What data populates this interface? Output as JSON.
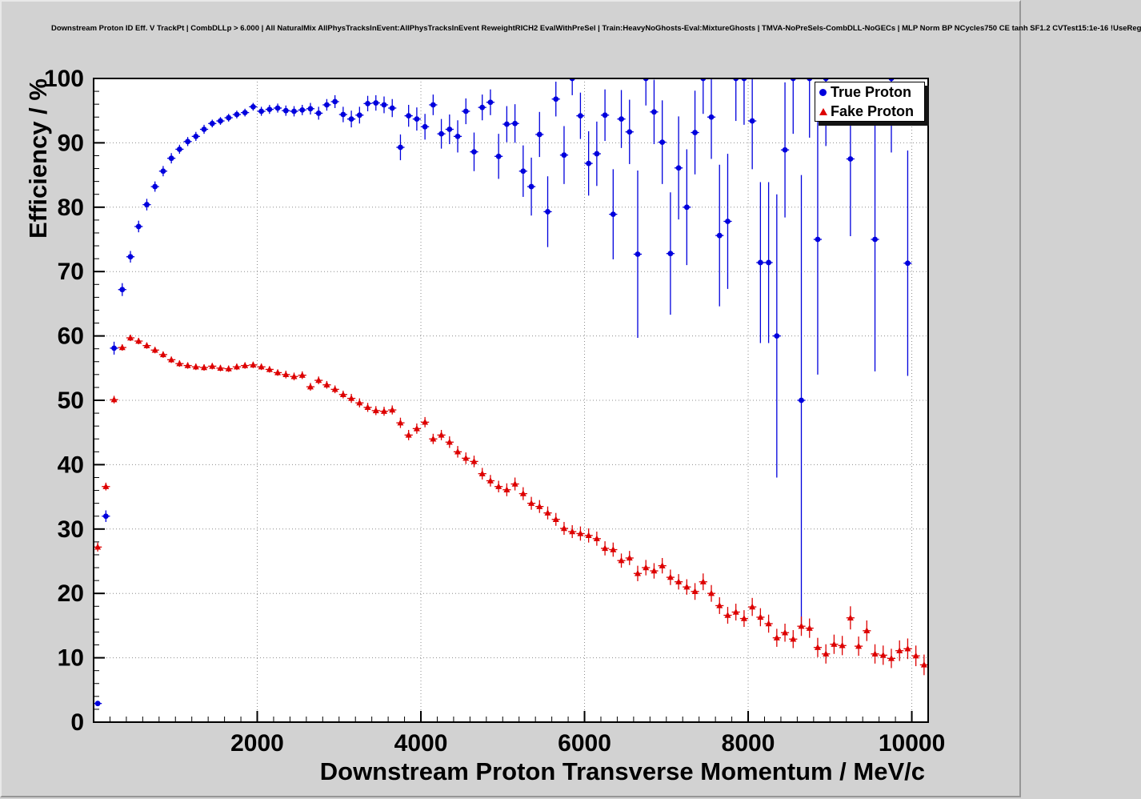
{
  "chart_data": {
    "type": "scatter",
    "title": "Downstream Proton ID Eff. V TrackPt | CombDLLp > 6.000 | All NaturalMix AllPhysTracksInEvent:AllPhysTracksInEvent ReweightRICH2 EvalWithPreSel | Train:HeavyNoGhosts-Eval:MixtureGhosts | TMVA-NoPreSels-CombDLL-NoGECs | MLP Norm BP NCycles750 CE tanh SF1.2 CVTest15:1e-16 !UseReg",
    "xlabel": "Downstream Proton Transverse Momentum / MeV/c",
    "ylabel": "Efficiency / %",
    "xlim": [
      0,
      10200
    ],
    "ylim": [
      0,
      100
    ],
    "x_ticks": [
      2000,
      4000,
      6000,
      8000,
      10000
    ],
    "y_ticks": [
      0,
      10,
      20,
      30,
      40,
      50,
      60,
      70,
      80,
      90,
      100
    ],
    "x_minor": 200,
    "y_minor": 2,
    "grid": true,
    "grid_color": "#8c8c8c",
    "frame_color": "#000000",
    "background_color": "#d2d2d2",
    "plot_background": "#ffffff",
    "legend_position": "top-right",
    "series": [
      {
        "name": "True Proton",
        "color": "#0000dd",
        "marker": "circle",
        "x_err": 50,
        "points": [
          [
            50,
            2.9,
            0.3
          ],
          [
            150,
            32.0,
            0.9
          ],
          [
            250,
            58.1,
            1.0
          ],
          [
            350,
            67.2,
            1.0
          ],
          [
            450,
            72.3,
            0.9
          ],
          [
            550,
            77.0,
            0.9
          ],
          [
            650,
            80.4,
            0.9
          ],
          [
            750,
            83.2,
            0.8
          ],
          [
            850,
            85.6,
            0.8
          ],
          [
            950,
            87.6,
            0.8
          ],
          [
            1050,
            89.0,
            0.7
          ],
          [
            1150,
            90.2,
            0.7
          ],
          [
            1250,
            91.0,
            0.7
          ],
          [
            1350,
            92.1,
            0.7
          ],
          [
            1450,
            93.0,
            0.6
          ],
          [
            1550,
            93.4,
            0.6
          ],
          [
            1650,
            93.9,
            0.6
          ],
          [
            1750,
            94.4,
            0.6
          ],
          [
            1850,
            94.7,
            0.6
          ],
          [
            1950,
            95.6,
            0.6
          ],
          [
            2050,
            94.9,
            0.7
          ],
          [
            2150,
            95.2,
            0.7
          ],
          [
            2250,
            95.4,
            0.7
          ],
          [
            2350,
            95.0,
            0.8
          ],
          [
            2450,
            94.9,
            0.8
          ],
          [
            2550,
            95.1,
            0.8
          ],
          [
            2650,
            95.3,
            0.9
          ],
          [
            2750,
            94.6,
            1.0
          ],
          [
            2850,
            95.9,
            0.9
          ],
          [
            2950,
            96.4,
            1.0
          ],
          [
            3050,
            94.4,
            1.2
          ],
          [
            3150,
            93.7,
            1.3
          ],
          [
            3250,
            94.3,
            1.3
          ],
          [
            3350,
            96.1,
            1.2
          ],
          [
            3450,
            96.2,
            1.2
          ],
          [
            3550,
            95.9,
            1.3
          ],
          [
            3650,
            95.4,
            1.4
          ],
          [
            3750,
            89.3,
            2.0
          ],
          [
            3850,
            94.2,
            1.7
          ],
          [
            3950,
            93.7,
            1.8
          ],
          [
            4050,
            92.5,
            2.0
          ],
          [
            4150,
            95.9,
            1.6
          ],
          [
            4250,
            91.4,
            2.3
          ],
          [
            4350,
            92.1,
            2.3
          ],
          [
            4450,
            91.0,
            2.5
          ],
          [
            4550,
            94.9,
            2.0
          ],
          [
            4650,
            88.6,
            3.0
          ],
          [
            4750,
            95.5,
            2.0
          ],
          [
            4850,
            96.3,
            2.0
          ],
          [
            4950,
            87.9,
            3.5
          ],
          [
            5050,
            92.9,
            2.8
          ],
          [
            5150,
            93.0,
            3.0
          ],
          [
            5250,
            85.6,
            4.0
          ],
          [
            5350,
            83.2,
            4.5
          ],
          [
            5450,
            91.3,
            3.5
          ],
          [
            5550,
            79.3,
            5.5
          ],
          [
            5650,
            96.8,
            2.7
          ],
          [
            5750,
            88.1,
            4.5
          ],
          [
            5850,
            100.0,
            2.6
          ],
          [
            5950,
            94.2,
            3.6
          ],
          [
            6050,
            86.8,
            5.0
          ],
          [
            6150,
            88.3,
            5.0
          ],
          [
            6250,
            94.3,
            4.0
          ],
          [
            6350,
            78.9,
            7.0
          ],
          [
            6450,
            93.7,
            4.5
          ],
          [
            6550,
            91.7,
            5.0
          ],
          [
            6650,
            72.7,
            13.0
          ],
          [
            6750,
            100.0,
            4.2
          ],
          [
            6850,
            94.8,
            5.0
          ],
          [
            6950,
            90.1,
            6.5
          ],
          [
            7050,
            72.8,
            9.5
          ],
          [
            7150,
            86.1,
            8.0
          ],
          [
            7250,
            80.0,
            9.0
          ],
          [
            7350,
            91.6,
            6.5
          ],
          [
            7450,
            100.0,
            5.5
          ],
          [
            7550,
            94.0,
            6.5
          ],
          [
            7650,
            75.6,
            11.0
          ],
          [
            7750,
            77.8,
            10.5
          ],
          [
            7850,
            100.0,
            6.6
          ],
          [
            7950,
            100.0,
            7.2
          ],
          [
            8050,
            93.4,
            7.5
          ],
          [
            8150,
            71.4,
            12.5
          ],
          [
            8250,
            71.4,
            12.5
          ],
          [
            8350,
            60.0,
            22.0
          ],
          [
            8450,
            88.9,
            10.5
          ],
          [
            8550,
            100.0,
            8.6
          ],
          [
            8650,
            50.0,
            35.0
          ],
          [
            8750,
            100.0,
            9.2
          ],
          [
            8850,
            75.0,
            21.0
          ],
          [
            8950,
            100.0,
            10.5
          ],
          [
            9250,
            87.5,
            12.0
          ],
          [
            9550,
            75.0,
            20.5
          ],
          [
            9750,
            100.0,
            11.5
          ],
          [
            9950,
            71.3,
            17.5
          ]
        ]
      },
      {
        "name": "Fake Proton",
        "color": "#dd0000",
        "marker": "triangle",
        "x_err": 50,
        "points": [
          [
            50,
            27.2,
            0.7
          ],
          [
            150,
            36.6,
            0.6
          ],
          [
            250,
            50.1,
            0.6
          ],
          [
            350,
            58.2,
            0.5
          ],
          [
            450,
            59.7,
            0.5
          ],
          [
            550,
            59.2,
            0.5
          ],
          [
            650,
            58.5,
            0.5
          ],
          [
            750,
            57.8,
            0.5
          ],
          [
            850,
            57.1,
            0.5
          ],
          [
            950,
            56.3,
            0.5
          ],
          [
            1050,
            55.7,
            0.5
          ],
          [
            1150,
            55.4,
            0.5
          ],
          [
            1250,
            55.2,
            0.5
          ],
          [
            1350,
            55.1,
            0.5
          ],
          [
            1450,
            55.3,
            0.5
          ],
          [
            1550,
            55.0,
            0.5
          ],
          [
            1650,
            54.9,
            0.5
          ],
          [
            1750,
            55.2,
            0.5
          ],
          [
            1850,
            55.4,
            0.5
          ],
          [
            1950,
            55.5,
            0.5
          ],
          [
            2050,
            55.2,
            0.5
          ],
          [
            2150,
            54.8,
            0.5
          ],
          [
            2250,
            54.3,
            0.5
          ],
          [
            2350,
            54.0,
            0.6
          ],
          [
            2450,
            53.7,
            0.6
          ],
          [
            2550,
            53.9,
            0.6
          ],
          [
            2650,
            52.1,
            0.6
          ],
          [
            2750,
            53.1,
            0.6
          ],
          [
            2850,
            52.4,
            0.6
          ],
          [
            2950,
            51.7,
            0.6
          ],
          [
            3050,
            50.9,
            0.6
          ],
          [
            3150,
            50.3,
            0.7
          ],
          [
            3250,
            49.6,
            0.7
          ],
          [
            3350,
            48.9,
            0.7
          ],
          [
            3450,
            48.4,
            0.7
          ],
          [
            3550,
            48.3,
            0.7
          ],
          [
            3650,
            48.5,
            0.7
          ],
          [
            3750,
            46.5,
            0.8
          ],
          [
            3850,
            44.6,
            0.8
          ],
          [
            3950,
            45.6,
            0.8
          ],
          [
            4050,
            46.6,
            0.8
          ],
          [
            4150,
            44.0,
            0.8
          ],
          [
            4250,
            44.6,
            0.8
          ],
          [
            4350,
            43.5,
            0.9
          ],
          [
            4450,
            42.0,
            0.9
          ],
          [
            4550,
            41.0,
            0.9
          ],
          [
            4650,
            40.5,
            0.9
          ],
          [
            4750,
            38.6,
            0.9
          ],
          [
            4850,
            37.5,
            0.9
          ],
          [
            4950,
            36.6,
            0.9
          ],
          [
            5050,
            36.1,
            1.0
          ],
          [
            5150,
            37.0,
            1.0
          ],
          [
            5250,
            35.5,
            1.0
          ],
          [
            5350,
            34.0,
            1.0
          ],
          [
            5450,
            33.5,
            1.0
          ],
          [
            5550,
            32.5,
            1.0
          ],
          [
            5650,
            31.5,
            1.0
          ],
          [
            5750,
            30.1,
            1.0
          ],
          [
            5850,
            29.6,
            1.0
          ],
          [
            5950,
            29.3,
            1.1
          ],
          [
            6050,
            29.0,
            1.1
          ],
          [
            6150,
            28.5,
            1.1
          ],
          [
            6250,
            27.0,
            1.1
          ],
          [
            6350,
            26.8,
            1.1
          ],
          [
            6450,
            25.1,
            1.1
          ],
          [
            6550,
            25.5,
            1.1
          ],
          [
            6650,
            23.1,
            1.2
          ],
          [
            6750,
            24.0,
            1.2
          ],
          [
            6850,
            23.5,
            1.2
          ],
          [
            6950,
            24.3,
            1.2
          ],
          [
            7050,
            22.5,
            1.2
          ],
          [
            7150,
            21.8,
            1.2
          ],
          [
            7250,
            21.0,
            1.2
          ],
          [
            7350,
            20.3,
            1.3
          ],
          [
            7450,
            21.8,
            1.3
          ],
          [
            7550,
            20.0,
            1.3
          ],
          [
            7650,
            18.1,
            1.3
          ],
          [
            7750,
            16.6,
            1.3
          ],
          [
            7850,
            17.1,
            1.3
          ],
          [
            7950,
            16.1,
            1.3
          ],
          [
            8050,
            17.9,
            1.4
          ],
          [
            8150,
            16.3,
            1.4
          ],
          [
            8250,
            15.3,
            1.4
          ],
          [
            8350,
            13.1,
            1.4
          ],
          [
            8450,
            13.9,
            1.4
          ],
          [
            8550,
            12.9,
            1.4
          ],
          [
            8650,
            14.9,
            1.5
          ],
          [
            8750,
            14.6,
            1.5
          ],
          [
            8850,
            11.6,
            1.5
          ],
          [
            8950,
            10.6,
            1.5
          ],
          [
            9050,
            12.1,
            1.5
          ],
          [
            9150,
            11.9,
            1.5
          ],
          [
            9250,
            16.2,
            1.8
          ],
          [
            9350,
            11.8,
            1.5
          ],
          [
            9450,
            14.2,
            1.6
          ],
          [
            9550,
            10.6,
            1.5
          ],
          [
            9650,
            10.4,
            1.5
          ],
          [
            9750,
            9.9,
            1.5
          ],
          [
            9850,
            11.1,
            1.6
          ],
          [
            9950,
            11.4,
            1.6
          ],
          [
            10050,
            10.3,
            1.6
          ],
          [
            10150,
            8.9,
            1.6
          ]
        ]
      }
    ]
  }
}
